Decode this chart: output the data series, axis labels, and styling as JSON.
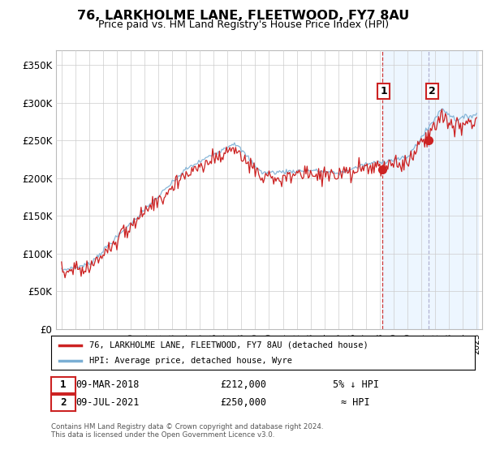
{
  "title": "76, LARKHOLME LANE, FLEETWOOD, FY7 8AU",
  "subtitle": "Price paid vs. HM Land Registry's House Price Index (HPI)",
  "ylabel_ticks": [
    "£0",
    "£50K",
    "£100K",
    "£150K",
    "£200K",
    "£250K",
    "£300K",
    "£350K"
  ],
  "ytick_values": [
    0,
    50000,
    100000,
    150000,
    200000,
    250000,
    300000,
    350000
  ],
  "ylim": [
    0,
    370000
  ],
  "hpi_color": "#7bafd4",
  "price_color": "#cc2222",
  "m1_year": 2018.17,
  "m2_year": 2021.5,
  "marker1_price": 212000,
  "marker2_price": 250000,
  "legend_label1": "76, LARKHOLME LANE, FLEETWOOD, FY7 8AU (detached house)",
  "legend_label2": "HPI: Average price, detached house, Wyre",
  "table_row1": [
    "1",
    "09-MAR-2018",
    "£212,000",
    "5% ↓ HPI"
  ],
  "table_row2": [
    "2",
    "09-JUL-2021",
    "£250,000",
    "≈ HPI"
  ],
  "footer": "Contains HM Land Registry data © Crown copyright and database right 2024.\nThis data is licensed under the Open Government Licence v3.0.",
  "background_color": "#ffffff",
  "grid_color": "#cccccc",
  "shaded_color": "#ddeeff"
}
